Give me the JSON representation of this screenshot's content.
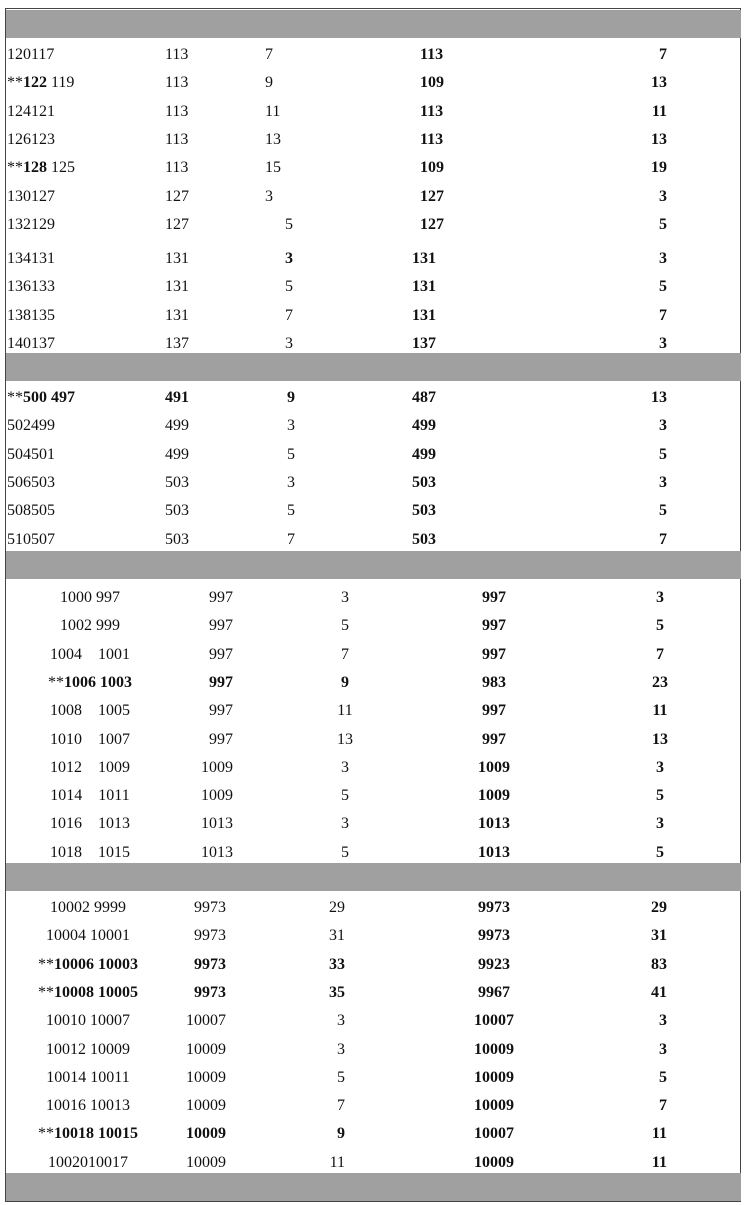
{
  "sections": [
    {
      "rows": [
        {
          "c1": {
            "mark": "",
            "a": "120",
            "b": "117",
            "bold_a": false,
            "bold_b": false
          },
          "c2": "113",
          "c3": "7",
          "c4": "113",
          "c5": "7",
          "b2": false,
          "b3": false,
          "b4": true,
          "b5": true
        },
        {
          "c1": {
            "mark": "**",
            "a": "122",
            "b": " 119",
            "bold_a": true,
            "bold_b": false
          },
          "c2": "113",
          "c3": "9",
          "c4": "109",
          "c5": "13",
          "b2": false,
          "b3": false,
          "b4": true,
          "b5": true
        },
        {
          "c1": {
            "mark": "",
            "a": "124",
            "b": "121",
            "bold_a": false,
            "bold_b": false
          },
          "c2": "113",
          "c3": "11",
          "c4": "113",
          "c5": "11",
          "b2": false,
          "b3": false,
          "b4": true,
          "b5": true
        },
        {
          "c1": {
            "mark": "",
            "a": "126",
            "b": "123",
            "bold_a": false,
            "bold_b": false
          },
          "c2": "113",
          "c3": "13",
          "c4": "113",
          "c5": "13",
          "b2": false,
          "b3": false,
          "b4": true,
          "b5": true
        },
        {
          "c1": {
            "mark": "**",
            "a": "128",
            "b": " 125",
            "bold_a": true,
            "bold_b": false
          },
          "c2": "113",
          "c3": "15",
          "c4": "109",
          "c5": "19",
          "b2": false,
          "b3": false,
          "b4": true,
          "b5": true
        },
        {
          "c1": {
            "mark": "",
            "a": "130",
            "b": "127",
            "bold_a": false,
            "bold_b": false
          },
          "c2": "127",
          "c3": "3",
          "c4": "127",
          "c5": "3",
          "b2": false,
          "b3": false,
          "b4": true,
          "b5": true
        },
        {
          "c1": {
            "mark": "",
            "a": "132",
            "b": "129",
            "bold_a": false,
            "bold_b": false
          },
          "c2": "127",
          "c3": "5",
          "c4": "127",
          "c5": "5",
          "b2": false,
          "b3": false,
          "b4": true,
          "b5": true
        },
        {
          "c1": {
            "mark": "",
            "a": "134",
            "b": "131",
            "bold_a": false,
            "bold_b": false
          },
          "c2": "131",
          "c3": "3",
          "c4": "131",
          "c5": "3",
          "b2": false,
          "b3": true,
          "b4": true,
          "b5": true
        },
        {
          "c1": {
            "mark": "",
            "a": "136",
            "b": "133",
            "bold_a": false,
            "bold_b": false
          },
          "c2": "131",
          "c3": "5",
          "c4": "131",
          "c5": "5",
          "b2": false,
          "b3": false,
          "b4": true,
          "b5": true
        },
        {
          "c1": {
            "mark": "",
            "a": "138",
            "b": "135",
            "bold_a": false,
            "bold_b": false
          },
          "c2": "131",
          "c3": "7",
          "c4": "131",
          "c5": "7",
          "b2": false,
          "b3": false,
          "b4": true,
          "b5": true
        },
        {
          "c1": {
            "mark": "",
            "a": "140",
            "b": "137",
            "bold_a": false,
            "bold_b": false
          },
          "c2": "137",
          "c3": "3",
          "c4": "137",
          "c5": "3",
          "b2": false,
          "b3": false,
          "b4": true,
          "b5": true
        }
      ]
    },
    {
      "rows": [
        {
          "c1": {
            "mark": "**",
            "a": "500",
            "b": " 497",
            "bold_a": true,
            "bold_b": true
          },
          "c2": "491",
          "c3": "9",
          "c4": "487",
          "c5": "13",
          "b2": true,
          "b3": true,
          "b4": true,
          "b5": true
        },
        {
          "c1": {
            "mark": "",
            "a": "502",
            "b": "499",
            "bold_a": false,
            "bold_b": false
          },
          "c2": "499",
          "c3": "3",
          "c4": "499",
          "c5": "3",
          "b2": false,
          "b3": false,
          "b4": true,
          "b5": true
        },
        {
          "c1": {
            "mark": "",
            "a": "504",
            "b": "501",
            "bold_a": false,
            "bold_b": false
          },
          "c2": "499",
          "c3": "5",
          "c4": "499",
          "c5": "5",
          "b2": false,
          "b3": false,
          "b4": true,
          "b5": true
        },
        {
          "c1": {
            "mark": "",
            "a": "506",
            "b": "503",
            "bold_a": false,
            "bold_b": false
          },
          "c2": "503",
          "c3": "3",
          "c4": "503",
          "c5": "3",
          "b2": false,
          "b3": false,
          "b4": true,
          "b5": true
        },
        {
          "c1": {
            "mark": "",
            "a": "508",
            "b": "505",
            "bold_a": false,
            "bold_b": false
          },
          "c2": "503",
          "c3": "5",
          "c4": "503",
          "c5": "5",
          "b2": false,
          "b3": false,
          "b4": true,
          "b5": true
        },
        {
          "c1": {
            "mark": "",
            "a": "510",
            "b": "507",
            "bold_a": false,
            "bold_b": false
          },
          "c2": "503",
          "c3": "7",
          "c4": "503",
          "c5": "7",
          "b2": false,
          "b3": false,
          "b4": true,
          "b5": true
        }
      ]
    },
    {
      "rows": [
        {
          "c1": {
            "mark": "",
            "a": "1000",
            "b": " 997",
            "bold_a": false,
            "bold_b": false
          },
          "c2": "997",
          "c3": "3",
          "c4": "997",
          "c5": "3",
          "b2": false,
          "b3": false,
          "b4": true,
          "b5": true
        },
        {
          "c1": {
            "mark": "",
            "a": "1002",
            "b": " 999",
            "bold_a": false,
            "bold_b": false
          },
          "c2": "997",
          "c3": "5",
          "c4": "997",
          "c5": "5",
          "b2": false,
          "b3": false,
          "b4": true,
          "b5": true
        },
        {
          "c1": {
            "mark": "",
            "a": "1004",
            "b": "    1001",
            "bold_a": false,
            "bold_b": false
          },
          "c2": "997",
          "c3": "7",
          "c4": "997",
          "c5": "7",
          "b2": false,
          "b3": false,
          "b4": true,
          "b5": true
        },
        {
          "c1": {
            "mark": "**",
            "a": "1006",
            "b": " 1003",
            "bold_a": true,
            "bold_b": true
          },
          "c2": "997",
          "c3": "9",
          "c4": "983",
          "c5": "23",
          "b2": true,
          "b3": true,
          "b4": true,
          "b5": true
        },
        {
          "c1": {
            "mark": "",
            "a": "1008",
            "b": "    1005",
            "bold_a": false,
            "bold_b": false
          },
          "c2": "997",
          "c3": "11",
          "c4": "997",
          "c5": "11",
          "b2": false,
          "b3": false,
          "b4": true,
          "b5": true
        },
        {
          "c1": {
            "mark": "",
            "a": "1010",
            "b": "    1007",
            "bold_a": false,
            "bold_b": false
          },
          "c2": "997",
          "c3": "13",
          "c4": "997",
          "c5": "13",
          "b2": false,
          "b3": false,
          "b4": true,
          "b5": true
        },
        {
          "c1": {
            "mark": "",
            "a": "1012",
            "b": "    1009",
            "bold_a": false,
            "bold_b": false
          },
          "c2": "1009",
          "c3": "3",
          "c4": "1009",
          "c5": "3",
          "b2": false,
          "b3": false,
          "b4": true,
          "b5": true
        },
        {
          "c1": {
            "mark": "",
            "a": "1014",
            "b": "    1011",
            "bold_a": false,
            "bold_b": false
          },
          "c2": "1009",
          "c3": "5",
          "c4": "1009",
          "c5": "5",
          "b2": false,
          "b3": false,
          "b4": true,
          "b5": true
        },
        {
          "c1": {
            "mark": "",
            "a": "1016",
            "b": "    1013",
            "bold_a": false,
            "bold_b": false
          },
          "c2": "1013",
          "c3": "3",
          "c4": "1013",
          "c5": "3",
          "b2": false,
          "b3": false,
          "b4": true,
          "b5": true
        },
        {
          "c1": {
            "mark": "",
            "a": "1018",
            "b": "    1015",
            "bold_a": false,
            "bold_b": false
          },
          "c2": "1013",
          "c3": "5",
          "c4": "1013",
          "c5": "5",
          "b2": false,
          "b3": false,
          "b4": true,
          "b5": true
        }
      ]
    },
    {
      "rows": [
        {
          "c1": {
            "mark": "",
            "a": "10002",
            "b": " 9999",
            "bold_a": false,
            "bold_b": false
          },
          "c2": "9973",
          "c3": "29",
          "c4": "9973",
          "c5": "29",
          "b2": false,
          "b3": false,
          "b4": true,
          "b5": true
        },
        {
          "c1": {
            "mark": "",
            "a": "10004",
            "b": " 10001",
            "bold_a": false,
            "bold_b": false
          },
          "c2": "9973",
          "c3": "31",
          "c4": "9973",
          "c5": "31",
          "b2": false,
          "b3": false,
          "b4": true,
          "b5": true
        },
        {
          "c1": {
            "mark": "**",
            "a": "10006",
            "b": " 10003",
            "bold_a": true,
            "bold_b": true
          },
          "c2": "9973",
          "c3": "33",
          "c4": "9923",
          "c5": "83",
          "b2": true,
          "b3": true,
          "b4": true,
          "b5": true
        },
        {
          "c1": {
            "mark": "**",
            "a": "10008",
            "b": " 10005",
            "bold_a": true,
            "bold_b": true
          },
          "c2": "9973",
          "c3": "35",
          "c4": "9967",
          "c5": "41",
          "b2": true,
          "b3": true,
          "b4": true,
          "b5": true
        },
        {
          "c1": {
            "mark": "",
            "a": "10010",
            "b": " 10007",
            "bold_a": false,
            "bold_b": false
          },
          "c2": "10007",
          "c3": "3",
          "c4": "10007",
          "c5": "3",
          "b2": false,
          "b3": false,
          "b4": true,
          "b5": true
        },
        {
          "c1": {
            "mark": "",
            "a": "10012",
            "b": " 10009",
            "bold_a": false,
            "bold_b": false
          },
          "c2": "10009",
          "c3": "3",
          "c4": "10009",
          "c5": "3",
          "b2": false,
          "b3": false,
          "b4": true,
          "b5": true
        },
        {
          "c1": {
            "mark": "",
            "a": "10014",
            "b": " 10011",
            "bold_a": false,
            "bold_b": false
          },
          "c2": "10009",
          "c3": "5",
          "c4": "10009",
          "c5": "5",
          "b2": false,
          "b3": false,
          "b4": true,
          "b5": true
        },
        {
          "c1": {
            "mark": "",
            "a": "10016",
            "b": " 10013",
            "bold_a": false,
            "bold_b": false
          },
          "c2": "10009",
          "c3": "7",
          "c4": "10009",
          "c5": "7",
          "b2": false,
          "b3": false,
          "b4": true,
          "b5": true
        },
        {
          "c1": {
            "mark": "**",
            "a": "10018",
            "b": " 10015",
            "bold_a": true,
            "bold_b": true
          },
          "c2": "10009",
          "c3": "9",
          "c4": "10007",
          "c5": "11",
          "b2": true,
          "b3": true,
          "b4": true,
          "b5": true
        },
        {
          "c1": {
            "mark": "",
            "a": "10020",
            "b": "10017",
            "bold_a": false,
            "bold_b": false
          },
          "c2": "10009",
          "c3": "11",
          "c4": "10009",
          "c5": "11",
          "b2": false,
          "b3": false,
          "b4": true,
          "b5": true
        }
      ]
    }
  ]
}
